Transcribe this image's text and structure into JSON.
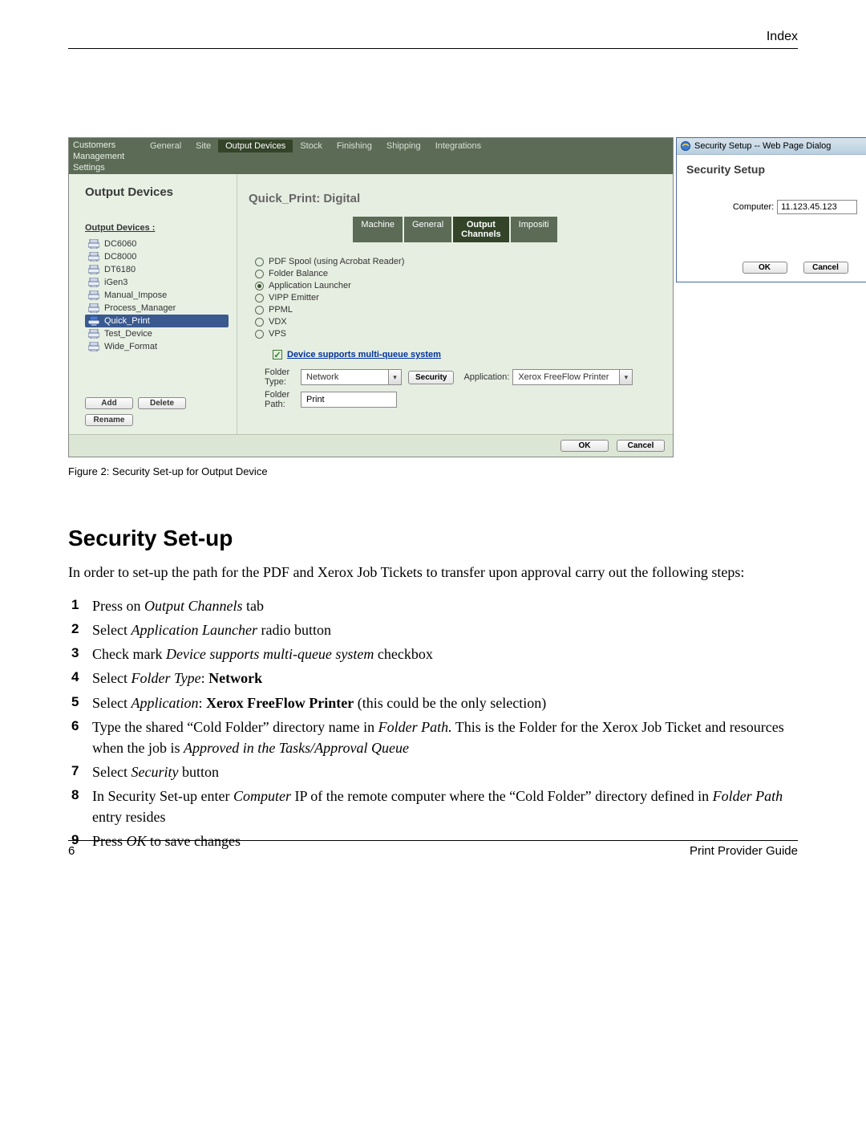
{
  "header": {
    "index": "Index"
  },
  "screenshot": {
    "menubar": {
      "left": [
        "Customers",
        "Management",
        "Settings"
      ],
      "tabs": [
        "General",
        "Site",
        "Output Devices",
        "Stock",
        "Finishing",
        "Shipping",
        "Integrations"
      ],
      "active_tab": "Output Devices"
    },
    "devices": {
      "panel_title": "Output Devices",
      "list_title": "Output Devices :",
      "items": [
        "DC6060",
        "DC8000",
        "DT6180",
        "iGen3",
        "Manual_Impose",
        "Process_Manager",
        "Quick_Print",
        "Test_Device",
        "Wide_Format"
      ],
      "selected": "Quick_Print",
      "buttons": {
        "add": "Add",
        "delete": "Delete",
        "rename": "Rename"
      }
    },
    "detail": {
      "title": "Quick_Print: Digital",
      "tabs": [
        "Machine",
        "General",
        "Output\nChannels",
        "Impositi"
      ],
      "active_tab": "Output\nChannels",
      "radios": [
        {
          "label": "PDF Spool (using Acrobat Reader)",
          "on": false
        },
        {
          "label": "Folder Balance",
          "on": false
        },
        {
          "label": "Application Launcher",
          "on": true
        },
        {
          "label": "VIPP Emitter",
          "on": false
        },
        {
          "label": "PPML",
          "on": false
        },
        {
          "label": "VDX",
          "on": false
        },
        {
          "label": "VPS",
          "on": false
        }
      ],
      "mq_label": "Device supports multi-queue system",
      "folder_type_label": "Folder\nType:",
      "folder_type_value": "Network",
      "security_btn": "Security",
      "application_label": "Application:",
      "application_value": "Xerox FreeFlow Printer",
      "folder_path_label": "Folder\nPath:",
      "folder_path_value": "Print"
    },
    "bottom": {
      "ok": "OK",
      "cancel": "Cancel"
    },
    "dialog": {
      "titlebar": "Security Setup -- Web Page Dialog",
      "heading": "Security Setup",
      "computer_label": "Computer:",
      "computer_value": "11.123.45.123",
      "ok": "OK",
      "cancel": "Cancel"
    }
  },
  "caption": "Figure 2: Security Set-up for Output Device",
  "heading": "Security Set-up",
  "intro": "In order to set-up the path for the PDF and Xerox Job Tickets to transfer upon approval carry out the following steps:",
  "steps": {
    "s1a": "Press on ",
    "s1b": "Output Channels",
    "s1c": " tab",
    "s2a": "Select ",
    "s2b": "Application Launcher",
    "s2c": " radio button",
    "s3a": "Check mark  ",
    "s3b": "Device supports multi-queue system",
    "s3c": "  checkbox",
    "s4a": "Select ",
    "s4b": "Folder Type",
    "s4c": ":  ",
    "s4d": "Network",
    "s5a": "Select ",
    "s5b": "Application",
    "s5c": ": ",
    "s5d": "Xerox FreeFlow Printer",
    "s5e": " (this could be the only selection)",
    "s6a": "Type the shared “Cold Folder” directory name in ",
    "s6b": "Folder Path.",
    "s6c": "  This is the Folder for the Xerox Job Ticket and resources when the job is ",
    "s6d": "Approved in the Tasks/Approval Queue",
    "s7a": "Select ",
    "s7b": "Security",
    "s7c": " button",
    "s8a": "In Security Set-up enter ",
    "s8b": "Computer",
    "s8c": " IP of the remote computer where the “Cold Folder” directory defined in ",
    "s8d": "Folder Path",
    "s8e": " entry resides",
    "s9a": "Press ",
    "s9b": "OK",
    "s9c": " to save changes"
  },
  "footer": {
    "page": "6",
    "title": "Print Provider Guide"
  }
}
